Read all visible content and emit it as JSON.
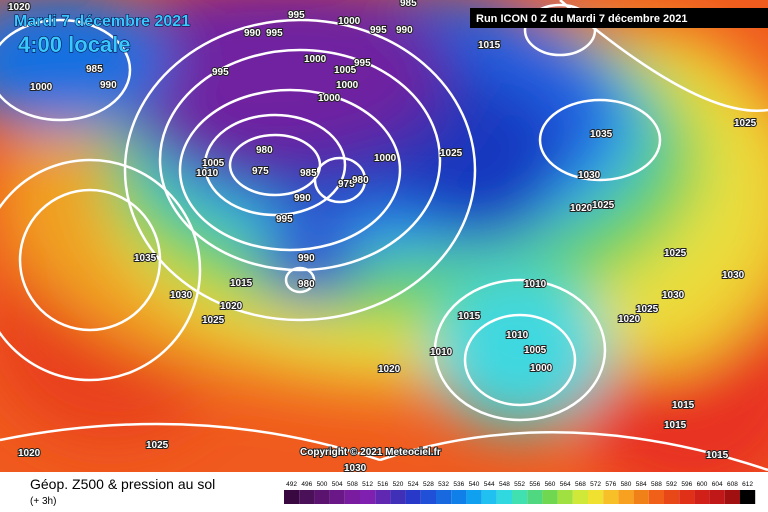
{
  "header": {
    "date": "Mardi 7 décembre 2021",
    "time": "4:00 locale",
    "run": "Run ICON 0 Z du Mardi 7 décembre 2021"
  },
  "copyright": "Copyright © 2021 Meteociel.fr",
  "footer": {
    "title": "Géop. Z500 & pression au sol",
    "step": "(+ 3h)"
  },
  "scale": {
    "labels": [
      492,
      496,
      500,
      504,
      508,
      512,
      516,
      520,
      524,
      528,
      532,
      536,
      540,
      544,
      548,
      552,
      556,
      560,
      564,
      568,
      572,
      576,
      580,
      584,
      588,
      592,
      596,
      600,
      604,
      608,
      612
    ]
  },
  "isobar_labels": [
    "1020",
    "995",
    "985",
    "1000",
    "995",
    "990",
    "990",
    "995",
    "985",
    "990",
    "1000",
    "995",
    "1000",
    "1005",
    "995",
    "1000",
    "1000",
    "1015",
    "1035",
    "1025",
    "1000",
    "980",
    "975",
    "985",
    "975",
    "980",
    "1005",
    "1010",
    "990",
    "995",
    "1030",
    "1020",
    "1025",
    "1025",
    "990",
    "980",
    "1035",
    "1030",
    "1015",
    "1020",
    "1025",
    "1010",
    "1015",
    "1010",
    "1005",
    "1010",
    "1000",
    "1020",
    "1025",
    "1025",
    "1020",
    "1030",
    "1030",
    "1015",
    "1015",
    "1015",
    "1025",
    "1020",
    "1030"
  ]
}
